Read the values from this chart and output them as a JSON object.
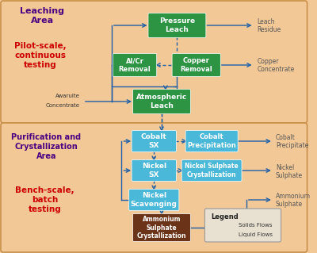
{
  "bg_color": "#f2c896",
  "section_border_color": "#c8904a",
  "green_box_color": "#2d9444",
  "green_box_text_color": "#ffffff",
  "blue_box_color": "#4ab8d8",
  "blue_box_text_color": "#ffffff",
  "brown_box_color": "#6b3318",
  "brown_box_text_color": "#ffffff",
  "arrow_solid_color": "#2060a8",
  "arrow_dashed_color": "#2060a8",
  "output_text_color": "#555555",
  "top_label1": "Leaching\nArea",
  "top_label1_color": "#4b0082",
  "top_label2": "Pilot-scale,\ncontinuous\ntesting",
  "top_label2_color": "#cc0000",
  "bot_label1": "Purification and\nCrystallization\nArea",
  "bot_label1_color": "#4b0082",
  "bot_label2": "Bench-scale,\nbatch\ntesting",
  "bot_label2_color": "#cc0000",
  "awaruite_text": "Awaruite\nConcentrate",
  "leach_residue": "Leach\nResidue",
  "copper_conc": "Copper\nConcentrate",
  "cobalt_precip_out": "Cobalt\nPrecipitate",
  "nickel_sulphate_out": "Nickel\nSulphate",
  "ammonium_sulphate_out": "Ammonium\nSulphate"
}
